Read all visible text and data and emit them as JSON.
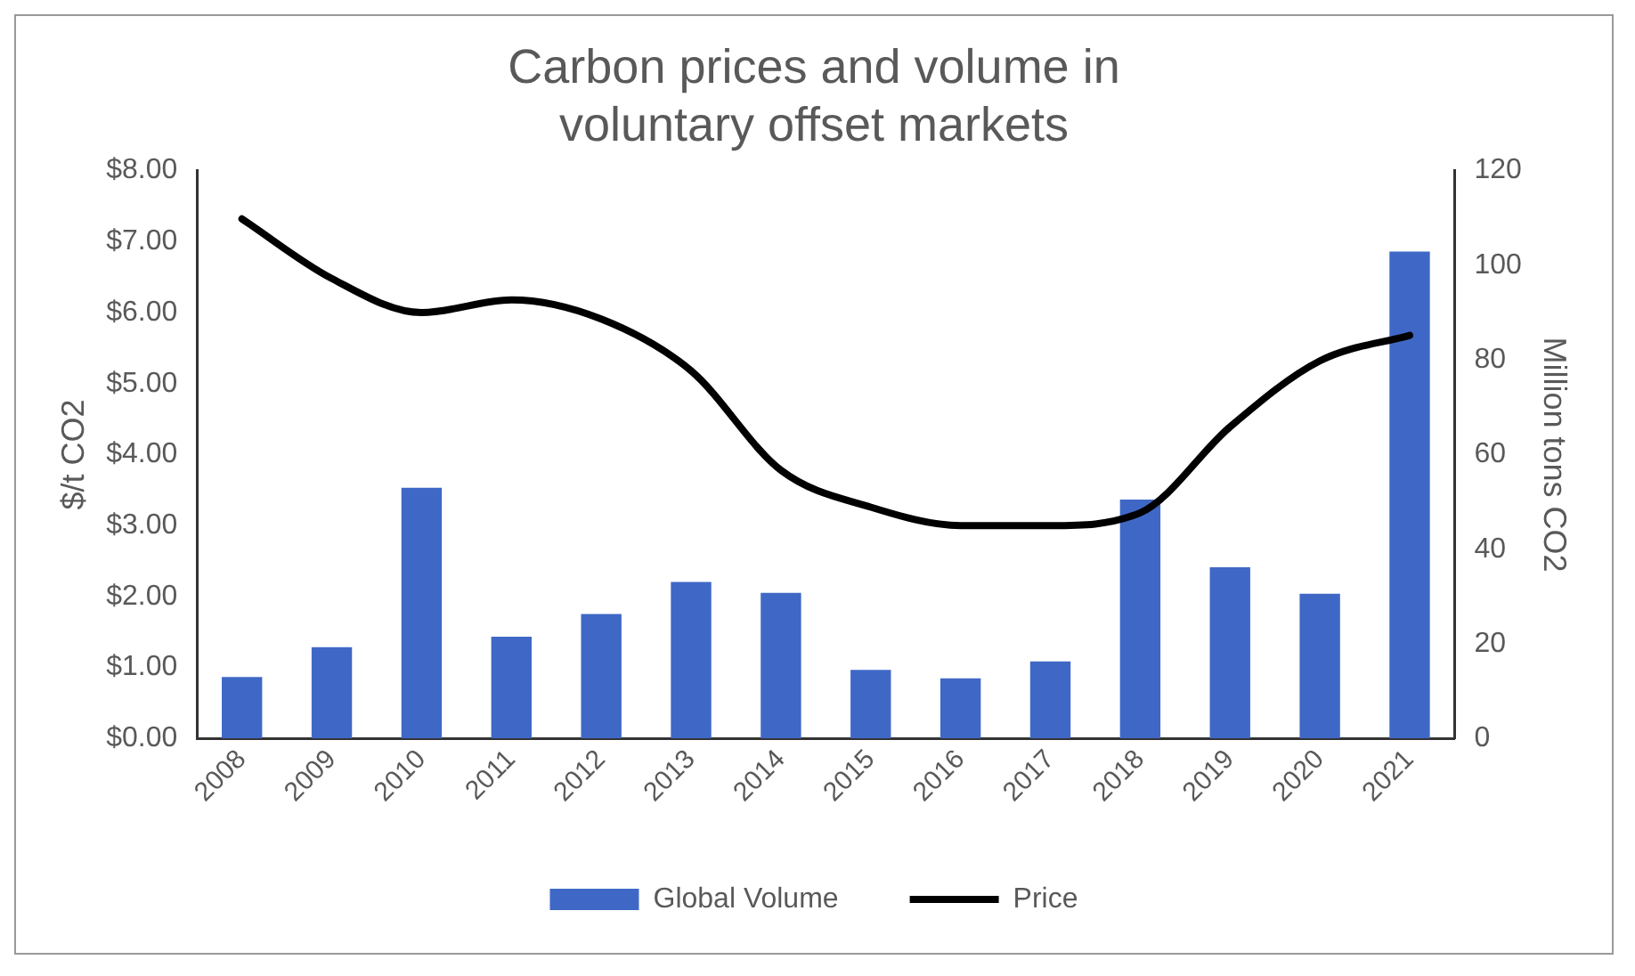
{
  "chart_data": {
    "type": "bar",
    "title": "Carbon prices and volume in voluntary offset markets",
    "ylabel": "$/t CO2",
    "y2label": "Million tons CO2",
    "categories": [
      "2008",
      "2009",
      "2010",
      "2011",
      "2012",
      "2013",
      "2014",
      "2015",
      "2016",
      "2017",
      "2018",
      "2019",
      "2020",
      "2021"
    ],
    "series": [
      {
        "name": "Global Volume",
        "axis": "y2",
        "color": "#3f68c6",
        "values": [
          13,
          19.3,
          53,
          21.5,
          26.3,
          33.1,
          30.8,
          14.5,
          12.7,
          16.3,
          50.5,
          36.2,
          30.6,
          102.9
        ]
      },
      {
        "name": "Price",
        "type": "line",
        "axis": "y",
        "color": "#000000",
        "values": [
          7.32,
          6.48,
          6.0,
          6.18,
          5.91,
          5.18,
          3.78,
          3.26,
          3.0,
          3.0,
          3.18,
          4.39,
          5.32,
          5.68
        ]
      }
    ],
    "ylim": [
      0,
      8
    ],
    "yticks": [
      {
        "value": 0,
        "label": "$0.00"
      },
      {
        "value": 1,
        "label": "$1.00"
      },
      {
        "value": 2,
        "label": "$2.00"
      },
      {
        "value": 3,
        "label": "$3.00"
      },
      {
        "value": 4,
        "label": "$4.00"
      },
      {
        "value": 5,
        "label": "$5.00"
      },
      {
        "value": 6,
        "label": "$6.00"
      },
      {
        "value": 7,
        "label": "$7.00"
      },
      {
        "value": 8,
        "label": "$8.00"
      }
    ],
    "y2lim": [
      0,
      120
    ],
    "y2ticks": [
      0,
      20,
      40,
      60,
      80,
      100,
      120
    ],
    "grid": false,
    "legend": "bottom",
    "marker": "none",
    "line_style": "solid"
  }
}
